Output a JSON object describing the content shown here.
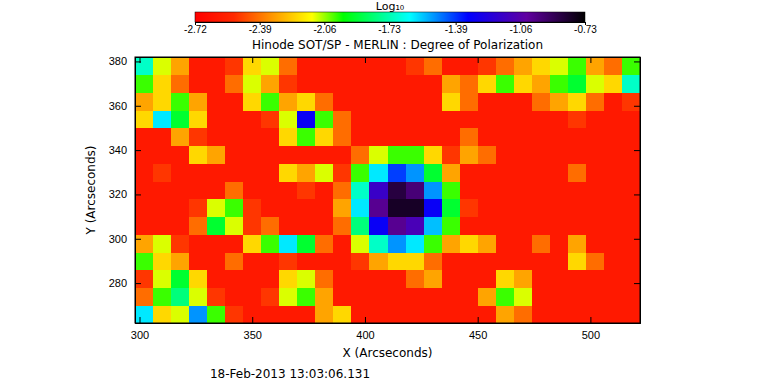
{
  "chart_data": {
    "type": "heatmap",
    "title": "Hinode SOT/SP - MERLIN : Degree of Polarization",
    "annotation": "18-Feb-2013 13:03:06.131",
    "xlabel": "X (Arcseconds)",
    "ylabel": "Y (Arcseconds)",
    "xlim": [
      298,
      522
    ],
    "ylim": [
      262,
      382
    ],
    "xticks": [
      300,
      350,
      400,
      450,
      500
    ],
    "yticks": [
      280,
      300,
      320,
      340,
      360,
      380
    ],
    "colorbar": {
      "label": "Log₁₀",
      "range": [
        -2.72,
        -0.73
      ],
      "ticks": [
        -2.72,
        -2.39,
        -2.06,
        -1.73,
        -1.39,
        -1.06,
        -0.73
      ]
    },
    "x": [
      302,
      310,
      318,
      326,
      334,
      342,
      350,
      358,
      366,
      374,
      382,
      390,
      398,
      406,
      414,
      422,
      430,
      438,
      446,
      454,
      462,
      470,
      478,
      486,
      494,
      502,
      510,
      518
    ],
    "y": [
      266,
      274,
      282,
      290,
      298,
      306,
      314,
      322,
      330,
      338,
      346,
      354,
      362,
      370,
      378
    ],
    "values": [
      [
        -1.6,
        -2.2,
        -2.1,
        -1.5,
        -2.0,
        -2.5,
        -2.6,
        -2.6,
        -2.6,
        -2.6,
        -2.3,
        -2.2,
        -2.6,
        -2.6,
        -2.6,
        -2.6,
        -2.6,
        -2.6,
        -2.6,
        -2.6,
        -2.3,
        -2.4,
        -2.6,
        -2.6,
        -2.6,
        -2.6,
        -2.6,
        -2.6
      ],
      [
        -2.4,
        -2.0,
        -1.8,
        -2.1,
        -2.5,
        -2.6,
        -2.6,
        -2.5,
        -2.1,
        -2.0,
        -2.3,
        -2.6,
        -2.6,
        -2.6,
        -2.6,
        -2.6,
        -2.6,
        -2.6,
        -2.6,
        -2.3,
        -2.0,
        -2.1,
        -2.6,
        -2.6,
        -2.6,
        -2.6,
        -2.6,
        -2.6
      ],
      [
        -2.5,
        -2.1,
        -1.9,
        -2.2,
        -2.6,
        -2.6,
        -2.6,
        -2.6,
        -2.2,
        -2.1,
        -2.4,
        -2.6,
        -2.6,
        -2.6,
        -2.6,
        -2.4,
        -2.3,
        -2.6,
        -2.6,
        -2.6,
        -2.2,
        -2.3,
        -2.6,
        -2.6,
        -2.6,
        -2.6,
        -2.6,
        -2.6
      ],
      [
        -2.0,
        -2.2,
        -2.3,
        -2.6,
        -2.6,
        -2.4,
        -2.6,
        -2.6,
        -2.5,
        -2.6,
        -2.6,
        -2.6,
        -2.5,
        -2.3,
        -2.2,
        -2.2,
        -2.4,
        -2.6,
        -2.6,
        -2.6,
        -2.6,
        -2.6,
        -2.6,
        -2.6,
        -2.2,
        -2.4,
        -2.6,
        -2.6
      ],
      [
        -2.3,
        -2.1,
        -2.5,
        -2.6,
        -2.6,
        -2.6,
        -2.2,
        -2.0,
        -1.6,
        -1.9,
        -2.4,
        -2.6,
        -2.1,
        -1.7,
        -1.5,
        -1.6,
        -2.0,
        -2.3,
        -2.2,
        -2.3,
        -2.6,
        -2.6,
        -2.4,
        -2.6,
        -2.3,
        -2.6,
        -2.6,
        -2.6
      ],
      [
        -2.6,
        -2.6,
        -2.6,
        -2.4,
        -1.9,
        -2.1,
        -2.5,
        -2.4,
        -2.6,
        -2.6,
        -2.6,
        -2.4,
        -1.8,
        -1.3,
        -1.0,
        -1.1,
        -1.55,
        -2.0,
        -2.6,
        -2.6,
        -2.6,
        -2.6,
        -2.6,
        -2.6,
        -2.6,
        -2.6,
        -2.6,
        -2.6
      ],
      [
        -2.6,
        -2.6,
        -2.6,
        -2.5,
        -2.1,
        -2.0,
        -2.5,
        -2.6,
        -2.6,
        -2.6,
        -2.6,
        -2.3,
        -1.6,
        -1.0,
        -0.8,
        -0.8,
        -1.3,
        -1.9,
        -2.5,
        -2.6,
        -2.6,
        -2.6,
        -2.6,
        -2.6,
        -2.6,
        -2.6,
        -2.6,
        -2.6
      ],
      [
        -2.6,
        -2.6,
        -2.6,
        -2.6,
        -2.6,
        -2.4,
        -2.6,
        -2.6,
        -2.6,
        -2.5,
        -2.6,
        -2.4,
        -1.7,
        -1.15,
        -0.85,
        -0.95,
        -1.5,
        -2.0,
        -2.6,
        -2.6,
        -2.6,
        -2.6,
        -2.6,
        -2.6,
        -2.6,
        -2.6,
        -2.6,
        -2.6
      ],
      [
        -2.6,
        -2.5,
        -2.6,
        -2.6,
        -2.6,
        -2.6,
        -2.6,
        -2.6,
        -2.2,
        -2.3,
        -2.1,
        -2.5,
        -2.0,
        -1.6,
        -1.4,
        -1.5,
        -1.9,
        -2.3,
        -2.6,
        -2.6,
        -2.6,
        -2.6,
        -2.6,
        -2.6,
        -2.4,
        -2.6,
        -2.6,
        -2.6
      ],
      [
        -2.6,
        -2.6,
        -2.6,
        -2.2,
        -2.3,
        -2.6,
        -2.6,
        -2.6,
        -2.6,
        -2.6,
        -2.6,
        -2.6,
        -2.4,
        -2.1,
        -2.0,
        -2.0,
        -2.2,
        -2.5,
        -2.3,
        -2.4,
        -2.6,
        -2.6,
        -2.6,
        -2.6,
        -2.6,
        -2.6,
        -2.6,
        -2.6
      ],
      [
        -2.6,
        -2.6,
        -2.3,
        -2.5,
        -2.6,
        -2.6,
        -2.6,
        -2.6,
        -2.2,
        -2.0,
        -2.2,
        -2.4,
        -2.6,
        -2.6,
        -2.6,
        -2.6,
        -2.6,
        -2.6,
        -2.4,
        -2.6,
        -2.6,
        -2.6,
        -2.6,
        -2.6,
        -2.6,
        -2.6,
        -2.6,
        -2.6
      ],
      [
        -2.2,
        -1.6,
        -1.9,
        -2.2,
        -2.6,
        -2.6,
        -2.6,
        -2.5,
        -2.1,
        -1.3,
        -2.0,
        -2.4,
        -2.6,
        -2.6,
        -2.6,
        -2.6,
        -2.6,
        -2.6,
        -2.6,
        -2.6,
        -2.6,
        -2.6,
        -2.6,
        -2.6,
        -2.5,
        -2.6,
        -2.6,
        -2.6
      ],
      [
        -2.3,
        -2.2,
        -2.0,
        -2.3,
        -2.6,
        -2.6,
        -2.2,
        -2.0,
        -2.3,
        -2.2,
        -2.4,
        -2.6,
        -2.6,
        -2.6,
        -2.6,
        -2.6,
        -2.6,
        -2.2,
        -2.4,
        -2.6,
        -2.6,
        -2.6,
        -2.4,
        -2.3,
        -2.2,
        -2.4,
        -2.6,
        -2.5
      ],
      [
        -2.0,
        -2.2,
        -2.4,
        -2.6,
        -2.6,
        -2.4,
        -2.1,
        -2.3,
        -2.5,
        -2.6,
        -2.6,
        -2.6,
        -2.6,
        -2.6,
        -2.6,
        -2.6,
        -2.6,
        -2.3,
        -2.4,
        -2.2,
        -2.0,
        -2.2,
        -2.3,
        -2.0,
        -1.9,
        -2.1,
        -2.2,
        -1.7
      ],
      [
        -1.7,
        -2.1,
        -2.3,
        -2.6,
        -2.6,
        -2.5,
        -2.2,
        -2.1,
        -2.4,
        -2.6,
        -2.6,
        -2.6,
        -2.6,
        -2.6,
        -2.6,
        -2.5,
        -2.4,
        -2.6,
        -2.6,
        -2.5,
        -2.4,
        -2.3,
        -2.2,
        -2.1,
        -2.0,
        -2.3,
        -2.4,
        -2.0
      ]
    ]
  }
}
